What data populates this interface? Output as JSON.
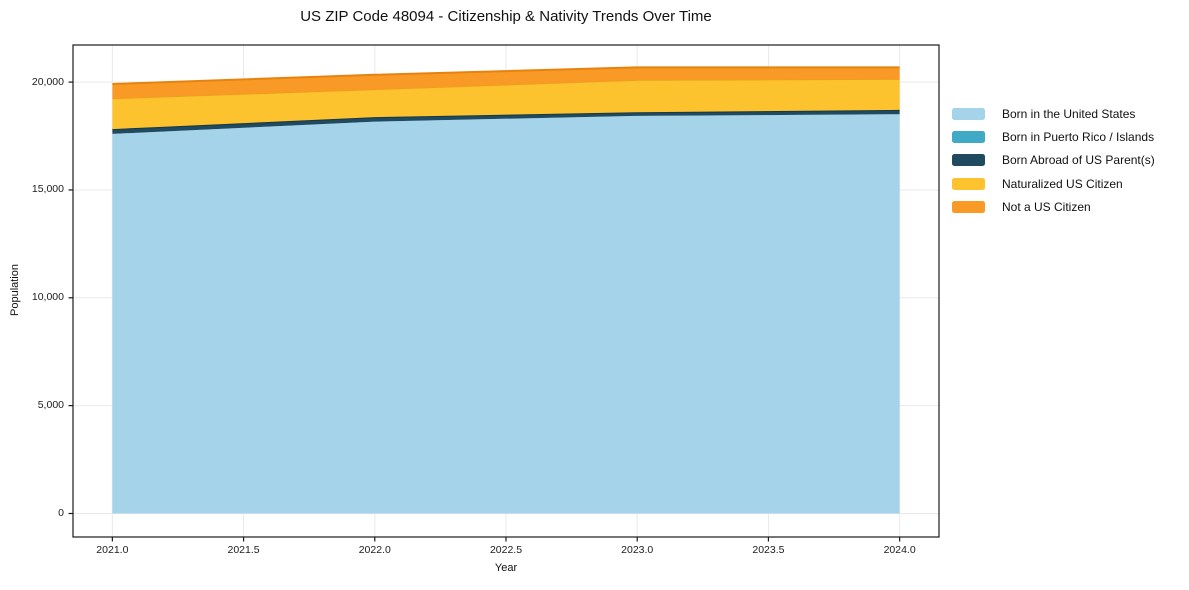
{
  "title": "US ZIP Code 48094 - Citizenship & Nativity Trends Over Time",
  "chart_data": {
    "type": "area",
    "stacked": true,
    "title": "US ZIP Code 48094 - Citizenship & Nativity Trends Over Time",
    "xlabel": "Year",
    "ylabel": "Population",
    "x": [
      2021,
      2022,
      2023,
      2024
    ],
    "series": [
      {
        "name": "Born in the United States",
        "values": [
          17600,
          18170,
          18435,
          18510
        ],
        "color": "#a5d3e9",
        "edge": null
      },
      {
        "name": "Born in Puerto Rico / Islands",
        "values": [
          0,
          0,
          0,
          0
        ],
        "color": "#3fa9c6",
        "edge": null
      },
      {
        "name": "Born Abroad of US Parent(s)",
        "values": [
          220,
          205,
          170,
          200
        ],
        "color": "#1f4a5f",
        "edge": "#16394a"
      },
      {
        "name": "Naturalized US Citizen",
        "values": [
          1430,
          1300,
          1500,
          1440
        ],
        "color": "#fdc32e",
        "edge": "#f09d1e"
      },
      {
        "name": "Not a US Citizen",
        "values": [
          660,
          665,
          575,
          530
        ],
        "color": "#f89a25",
        "edge": "#e8820e"
      }
    ],
    "totals": [
      19910,
      20340,
      20680,
      20680
    ],
    "xlim": [
      2020.85,
      2024.15
    ],
    "ylim": [
      -1090,
      21720
    ],
    "xticks": {
      "values": [
        2021.0,
        2021.5,
        2022.0,
        2022.5,
        2023.0,
        2023.5,
        2024.0
      ],
      "labels": [
        "2021.0",
        "2021.5",
        "2022.0",
        "2022.5",
        "2023.0",
        "2023.5",
        "2024.0"
      ]
    },
    "yticks": {
      "values": [
        0,
        5000,
        10000,
        15000,
        20000
      ],
      "labels": [
        "0",
        "5,000",
        "10,000",
        "15,000",
        "20,000"
      ]
    },
    "grid": true,
    "grid_color": "#e9e9e9",
    "spine_color": "#1a1a1a",
    "legend_position": "right"
  }
}
